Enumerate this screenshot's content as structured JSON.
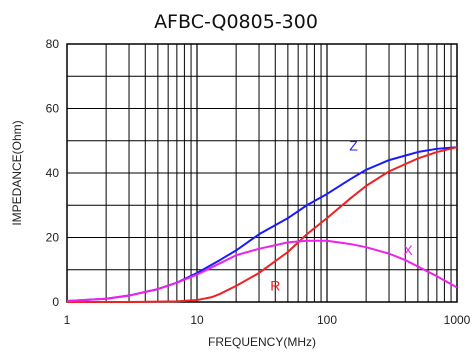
{
  "chart_data": {
    "type": "line",
    "title": "AFBC-Q0805-300",
    "xlabel": "FREQUENCY(MHz)",
    "ylabel": "IMPEDANCE(Ohm)",
    "x_scale": "log",
    "xlim": [
      1,
      1000
    ],
    "ylim": [
      0,
      80
    ],
    "x_ticks": [
      "1",
      "10",
      "100",
      "1000"
    ],
    "y_ticks": [
      "0",
      "20",
      "40",
      "60",
      "80"
    ],
    "grid": true,
    "series": [
      {
        "name": "Z",
        "color": "#1a1aff",
        "points": [
          [
            1,
            0.3
          ],
          [
            2,
            1
          ],
          [
            3,
            2
          ],
          [
            5,
            4
          ],
          [
            7,
            6
          ],
          [
            10,
            9
          ],
          [
            15,
            13
          ],
          [
            20,
            16
          ],
          [
            30,
            21
          ],
          [
            50,
            26
          ],
          [
            70,
            30
          ],
          [
            100,
            33.5
          ],
          [
            150,
            38
          ],
          [
            200,
            41
          ],
          [
            300,
            44
          ],
          [
            500,
            46.5
          ],
          [
            700,
            47.5
          ],
          [
            1000,
            48
          ]
        ]
      },
      {
        "name": "R",
        "color": "#ee2222",
        "points": [
          [
            1,
            0
          ],
          [
            3,
            0
          ],
          [
            5,
            0.1
          ],
          [
            7,
            0.2
          ],
          [
            10,
            0.6
          ],
          [
            13,
            1.5
          ],
          [
            15,
            2.5
          ],
          [
            20,
            5
          ],
          [
            30,
            9
          ],
          [
            50,
            15.5
          ],
          [
            70,
            21
          ],
          [
            100,
            26
          ],
          [
            150,
            32
          ],
          [
            200,
            36
          ],
          [
            300,
            40.5
          ],
          [
            500,
            44.5
          ],
          [
            700,
            46.5
          ],
          [
            1000,
            48
          ]
        ]
      },
      {
        "name": "X",
        "color": "#ee22ee",
        "points": [
          [
            1,
            0.3
          ],
          [
            2,
            1
          ],
          [
            3,
            2
          ],
          [
            5,
            4
          ],
          [
            7,
            6
          ],
          [
            10,
            8.5
          ],
          [
            15,
            12
          ],
          [
            20,
            14.5
          ],
          [
            30,
            16.5
          ],
          [
            50,
            18.5
          ],
          [
            70,
            19
          ],
          [
            100,
            19
          ],
          [
            150,
            18
          ],
          [
            200,
            17
          ],
          [
            300,
            15
          ],
          [
            400,
            13
          ],
          [
            500,
            11
          ],
          [
            700,
            8
          ],
          [
            1000,
            4.5
          ]
        ]
      }
    ]
  }
}
